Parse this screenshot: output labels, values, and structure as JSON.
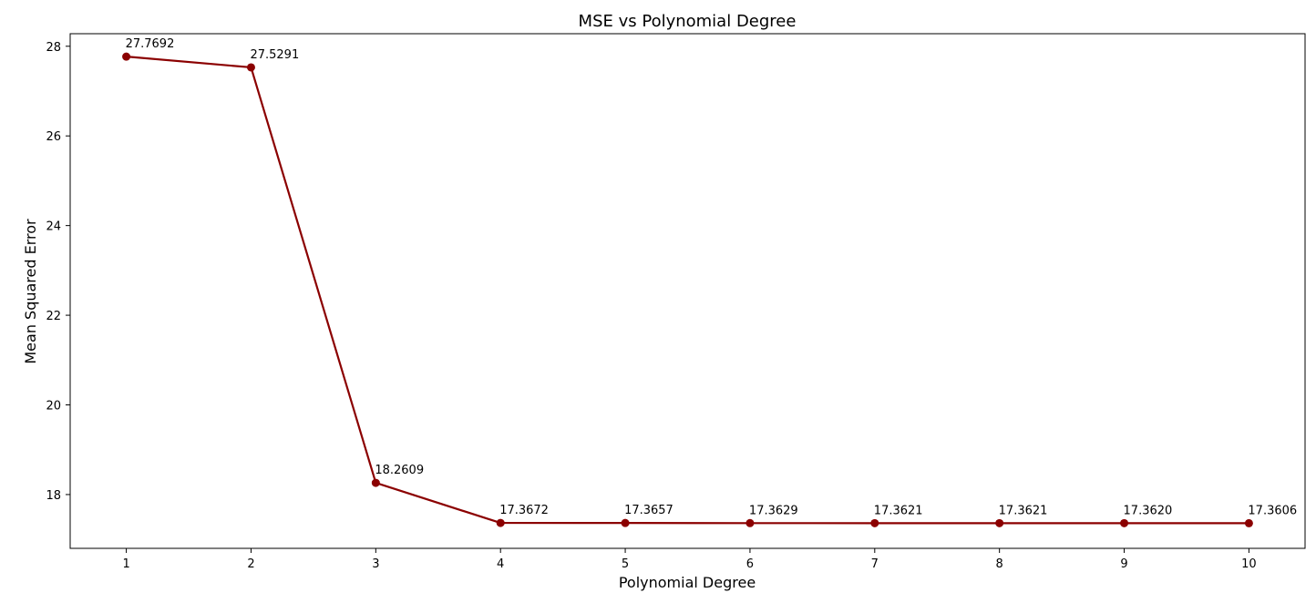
{
  "chart_data": {
    "type": "line",
    "title": "MSE vs Polynomial Degree",
    "xlabel": "Polynomial Degree",
    "ylabel": "Mean Squared Error",
    "x": [
      1,
      2,
      3,
      4,
      5,
      6,
      7,
      8,
      9,
      10
    ],
    "xlim": [
      0.55,
      10.45
    ],
    "ylim": [
      16.8,
      28.28
    ],
    "xticks": [
      1,
      2,
      3,
      4,
      5,
      6,
      7,
      8,
      9,
      10
    ],
    "yticks": [
      18,
      20,
      22,
      24,
      26,
      28
    ],
    "grid": false,
    "series": [
      {
        "values": [
          27.7692,
          27.5291,
          18.2609,
          17.3672,
          17.3657,
          17.3629,
          17.3621,
          17.3621,
          17.362,
          17.3606
        ],
        "labels": [
          "27.7692",
          "27.5291",
          "18.2609",
          "17.3672",
          "17.3657",
          "17.3629",
          "17.3621",
          "17.3621",
          "17.3620",
          "17.3606"
        ],
        "color": "#8b0000",
        "marker": "circle"
      }
    ]
  }
}
